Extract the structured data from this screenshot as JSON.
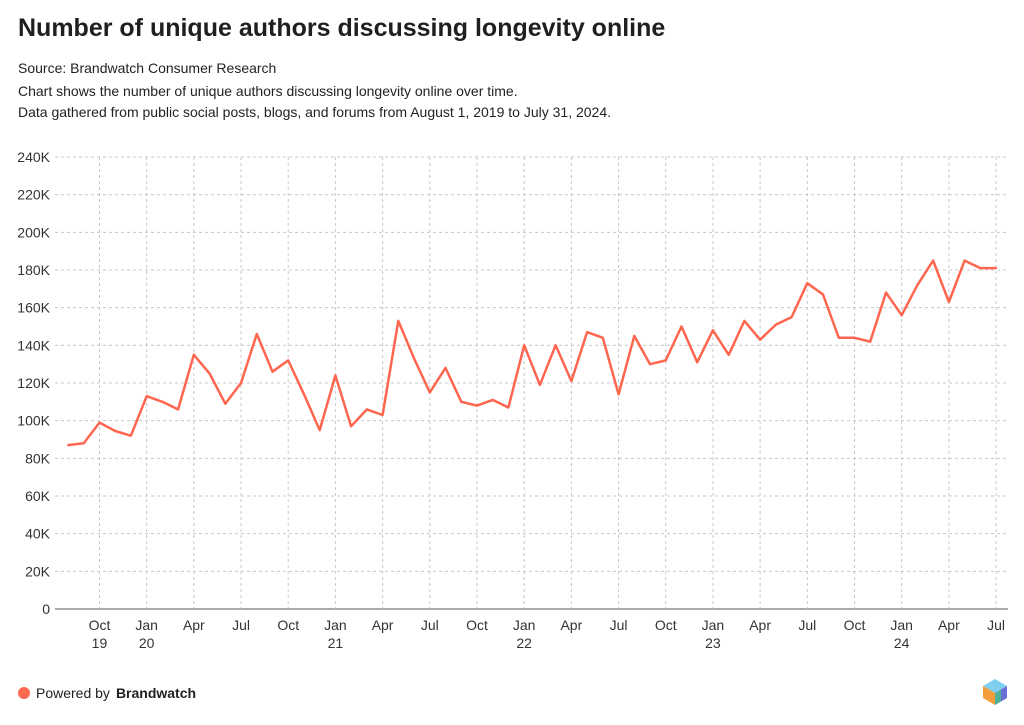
{
  "title": "Number of unique authors discussing longevity online",
  "source": "Source: Brandwatch Consumer Research",
  "description_line1": "Chart shows the number of unique authors discussing longevity online over time.",
  "description_line2": "Data gathered from public social posts, blogs, and forums from August 1, 2019 to July 31, 2024.",
  "footer": {
    "powered_by": "Powered by",
    "brand": "Brandwatch"
  },
  "colors": {
    "line": "#ff6650",
    "grid": "#c8c8c8",
    "brand_dot": "#ff6a52"
  },
  "chart_data": {
    "type": "line",
    "x_start": "2019-08",
    "x_interval": "month",
    "ylim": [
      0,
      240000
    ],
    "grid": true,
    "y_ticks": [
      "0",
      "20K",
      "40K",
      "60K",
      "80K",
      "100K",
      "120K",
      "140K",
      "160K",
      "180K",
      "200K",
      "220K",
      "240K"
    ],
    "x_ticks": [
      {
        "month": "2019-10",
        "label": "Oct",
        "year": "19"
      },
      {
        "month": "2020-01",
        "label": "Jan",
        "year": "20"
      },
      {
        "month": "2020-04",
        "label": "Apr",
        "year": ""
      },
      {
        "month": "2020-07",
        "label": "Jul",
        "year": ""
      },
      {
        "month": "2020-10",
        "label": "Oct",
        "year": ""
      },
      {
        "month": "2021-01",
        "label": "Jan",
        "year": "21"
      },
      {
        "month": "2021-04",
        "label": "Apr",
        "year": ""
      },
      {
        "month": "2021-07",
        "label": "Jul",
        "year": ""
      },
      {
        "month": "2021-10",
        "label": "Oct",
        "year": ""
      },
      {
        "month": "2022-01",
        "label": "Jan",
        "year": "22"
      },
      {
        "month": "2022-04",
        "label": "Apr",
        "year": ""
      },
      {
        "month": "2022-07",
        "label": "Jul",
        "year": ""
      },
      {
        "month": "2022-10",
        "label": "Oct",
        "year": ""
      },
      {
        "month": "2023-01",
        "label": "Jan",
        "year": "23"
      },
      {
        "month": "2023-04",
        "label": "Apr",
        "year": ""
      },
      {
        "month": "2023-07",
        "label": "Jul",
        "year": ""
      },
      {
        "month": "2023-10",
        "label": "Oct",
        "year": ""
      },
      {
        "month": "2024-01",
        "label": "Jan",
        "year": "24"
      },
      {
        "month": "2024-04",
        "label": "Apr",
        "year": ""
      },
      {
        "month": "2024-07",
        "label": "Jul",
        "year": ""
      }
    ],
    "series": [
      {
        "values": [
          87000,
          88000,
          99000,
          94500,
          92000,
          113000,
          110000,
          106000,
          135000,
          125000,
          109000,
          120000,
          146000,
          126000,
          132000,
          114000,
          95000,
          124000,
          97000,
          106000,
          103000,
          153000,
          133000,
          115000,
          128000,
          110000,
          108000,
          111000,
          107000,
          140000,
          119000,
          140000,
          121000,
          147000,
          144000,
          114000,
          145000,
          130000,
          132000,
          150000,
          131000,
          148000,
          135000,
          153000,
          143000,
          151000,
          155000,
          173000,
          167000,
          144000,
          144000,
          142000,
          168000,
          156000,
          172000,
          185000,
          163000,
          185000,
          181000,
          181000
        ]
      }
    ]
  }
}
